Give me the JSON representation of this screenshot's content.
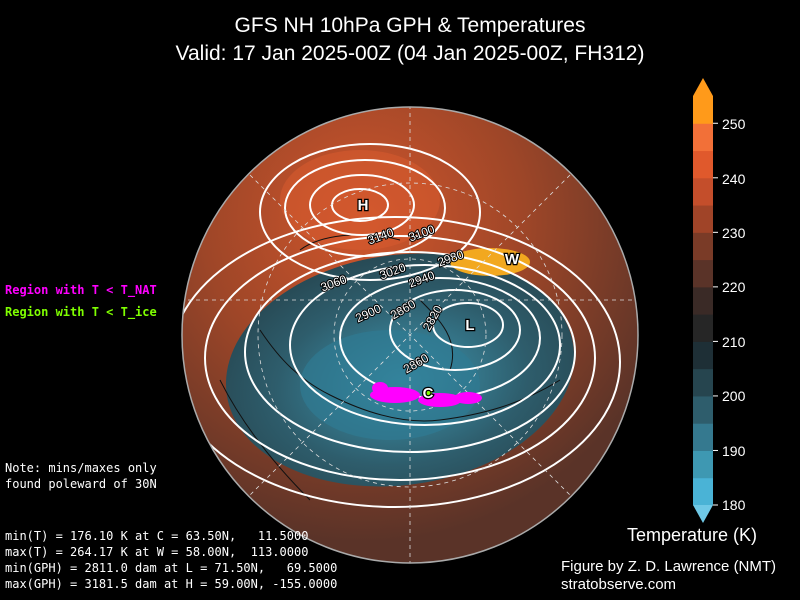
{
  "figure": {
    "title_line1": "GFS NH 10hPa GPH & Temperatures",
    "title_line2": "Valid: 17 Jan 2025-00Z  (04 Jan 2025-00Z, FH312)"
  },
  "legend": {
    "nat_label": "Region with T < T_NAT",
    "ice_label": "Region with T < T_ice",
    "nat_color": "#ff00ff",
    "ice_color": "#7fff00"
  },
  "note": {
    "line1": "Note: mins/maxes only",
    "line2": "found poleward of 30N"
  },
  "stats": {
    "min_t": "min(T) = 176.10 K at C = 63.50N,   11.5000",
    "max_t": "max(T) = 264.17 K at W = 58.00N,  113.0000",
    "min_gph": "min(GPH) = 2811.0 dam at L = 71.50N,   69.5000",
    "max_gph": "max(GPH) = 3181.5 dam at H = 59.00N, -155.0000"
  },
  "credit": {
    "line1": "Figure by Z. D. Lawrence (NMT)",
    "line2": "stratobserve.com"
  },
  "colorbar": {
    "title": "Temperature (K)",
    "ticks": [
      "250",
      "240",
      "230",
      "220",
      "210",
      "200",
      "190",
      "180"
    ],
    "min": 180,
    "max": 255,
    "colors": [
      "#4ab3d6",
      "#3e98b2",
      "#35798f",
      "#2e5d6c",
      "#26454f",
      "#1e2f36",
      "#262626",
      "#3a2a26",
      "#5a3328",
      "#7a3b27",
      "#a04428",
      "#c44e2b",
      "#e0592c",
      "#f27038",
      "#ff9a1a"
    ]
  },
  "map_labels": {
    "high": "H",
    "low": "L",
    "warm": "W",
    "cold": "C",
    "contours": [
      "3140",
      "3100",
      "3060",
      "3020",
      "2980",
      "2940",
      "2900",
      "2860",
      "2820",
      "2860"
    ]
  }
}
